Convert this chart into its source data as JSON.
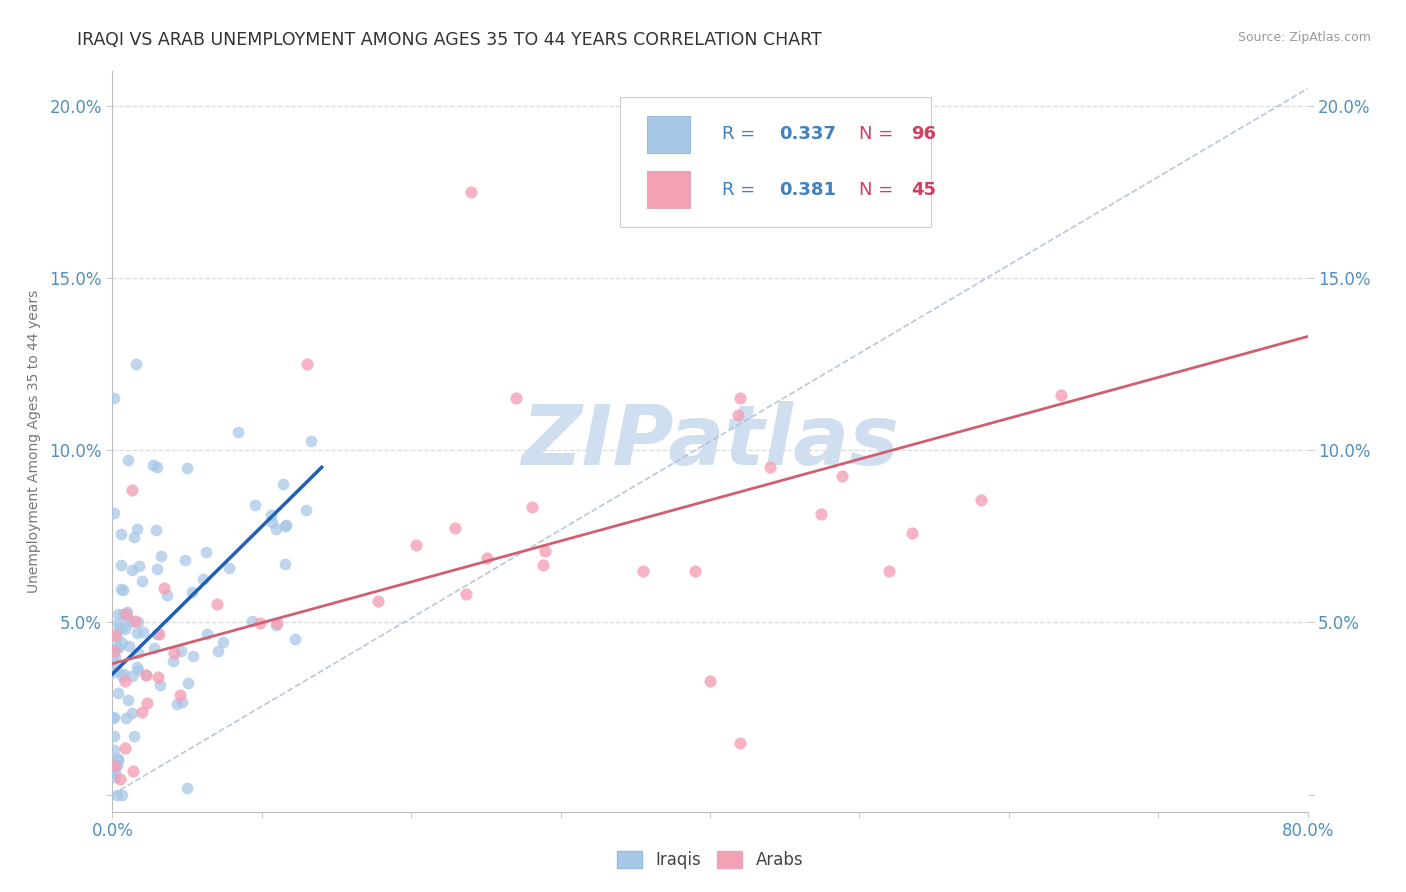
{
  "title": "IRAQI VS ARAB UNEMPLOYMENT AMONG AGES 35 TO 44 YEARS CORRELATION CHART",
  "source_text": "Source: ZipAtlas.com",
  "ylabel": "Unemployment Among Ages 35 to 44 years",
  "xlim": [
    0.0,
    0.8
  ],
  "ylim": [
    -0.005,
    0.21
  ],
  "xtick_positions": [
    0.0,
    0.1,
    0.2,
    0.3,
    0.4,
    0.5,
    0.6,
    0.7,
    0.8
  ],
  "xticklabels": [
    "0.0%",
    "",
    "",
    "",
    "",
    "",
    "",
    "",
    "80.0%"
  ],
  "ytick_positions": [
    0.0,
    0.05,
    0.1,
    0.15,
    0.2
  ],
  "yticklabels_left": [
    "",
    "5.0%",
    "10.0%",
    "15.0%",
    "20.0%"
  ],
  "yticklabels_right": [
    "",
    "5.0%",
    "10.0%",
    "15.0%",
    "20.0%"
  ],
  "iraqi_R": 0.337,
  "iraqi_N": 96,
  "arab_R": 0.381,
  "arab_N": 45,
  "iraqi_color": "#a8c8e8",
  "arab_color": "#f4a0b5",
  "iraqi_line_color": "#2060b0",
  "arab_line_color": "#d06070",
  "overall_line_color": "#a8b8d8",
  "grid_color": "#d8d8d8",
  "title_color": "#333333",
  "axis_tick_color": "#5090c0",
  "watermark_color": "#d0dff0",
  "legend_R_color": "#4080c0",
  "legend_N_color": "#d04060",
  "iraqi_line_x": [
    0.0,
    0.14
  ],
  "iraqi_line_y": [
    0.035,
    0.095
  ],
  "arab_line_x": [
    0.0,
    0.8
  ],
  "arab_line_y": [
    0.038,
    0.133
  ],
  "overall_line_x": [
    0.0,
    0.8
  ],
  "overall_line_y": [
    0.0,
    0.205
  ],
  "figsize": [
    14.06,
    8.92
  ],
  "dpi": 100
}
